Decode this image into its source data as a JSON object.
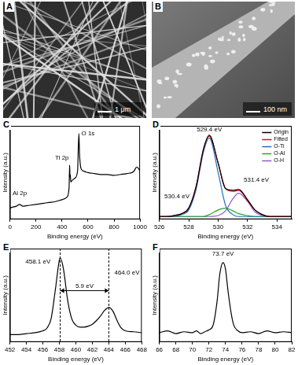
{
  "images": [
    {
      "panel_label": "A",
      "scale_bar": "1 μm"
    },
    {
      "panel_label": "B",
      "scale_bar": "100 nm"
    }
  ],
  "chart_data": [
    {
      "panel_label": "C",
      "type": "line",
      "x_label": "Binding energy (eV)",
      "y_label": "Intensity (a.u.)",
      "x": [
        0,
        20,
        50,
        74,
        100,
        150,
        200,
        250,
        300,
        350,
        400,
        440,
        455,
        459,
        462,
        464,
        468,
        480,
        500,
        520,
        530,
        535,
        545,
        560,
        600,
        650,
        700,
        750,
        800,
        850,
        900,
        950,
        975,
        1000
      ],
      "values": [
        12,
        13,
        14,
        16,
        14,
        15,
        16,
        17,
        18,
        19,
        21,
        24,
        35,
        58,
        45,
        48,
        40,
        42,
        44,
        52,
        92,
        70,
        55,
        52,
        50,
        49,
        48,
        48,
        47,
        48,
        49,
        51,
        56,
        52
      ],
      "color": "#000000",
      "xlim": [
        0,
        1000
      ],
      "xticks": [
        0,
        200,
        400,
        600,
        800,
        1000
      ],
      "ylim": [
        0,
        100
      ],
      "tick_labels": "x",
      "grid": false,
      "annotations": [
        {
          "text": "Al 2p",
          "x": 75,
          "y": 28
        },
        {
          "text": "Ti 2p",
          "x": 400,
          "y": 66
        },
        {
          "text": "O 1s",
          "x": 600,
          "y": 92
        }
      ]
    },
    {
      "panel_label": "D",
      "type": "line",
      "x_label": "Binding energy (eV)",
      "y_label": "Intensity (a.u.)",
      "x": [
        526,
        526.5,
        527,
        527.5,
        528,
        528.5,
        529,
        529.4,
        530,
        530.5,
        531,
        531.4,
        532,
        532.5,
        533,
        533.5,
        534,
        534.5,
        535
      ],
      "series": [
        {
          "name": "Origin",
          "color": "#000000",
          "values": [
            3,
            3,
            4,
            6,
            12,
            35,
            75,
            90,
            60,
            33,
            31,
            32,
            21,
            10,
            5,
            3,
            3,
            3,
            3
          ]
        },
        {
          "name": "Fitted",
          "color": "#ff0000",
          "values": [
            3,
            3,
            4,
            6,
            12,
            35,
            75,
            89,
            60,
            33,
            30,
            31,
            20,
            10,
            5,
            3,
            3,
            3,
            3
          ]
        },
        {
          "name": "O-Ti",
          "color": "#1f6fbf",
          "values": [
            3,
            3,
            3,
            5,
            10,
            32,
            72,
            87,
            50,
            15,
            5,
            3,
            3,
            3,
            3,
            3,
            3,
            3,
            3
          ]
        },
        {
          "name": "O-Al",
          "color": "#22aa22",
          "values": [
            3,
            3,
            3,
            3,
            3,
            3,
            3,
            5,
            10,
            12,
            9,
            6,
            4,
            3,
            3,
            3,
            3,
            3,
            3
          ]
        },
        {
          "name": "O-H",
          "color": "#8a5cc4",
          "values": [
            3,
            3,
            3,
            3,
            3,
            3,
            3,
            3,
            4,
            9,
            22,
            28,
            19,
            8,
            4,
            3,
            3,
            3,
            3
          ]
        }
      ],
      "xlim": [
        526,
        535
      ],
      "xticks": [
        526,
        528,
        530,
        532,
        534
      ],
      "ylim": [
        0,
        100
      ],
      "tick_labels": "x",
      "grid": false,
      "legend": "top right",
      "annotations": [
        {
          "text": "529.4 eV",
          "x": 529.4,
          "y": 96
        },
        {
          "text": "531.4 eV",
          "x": 532.6,
          "y": 42
        },
        {
          "text": "530.4 eV",
          "x": 527.2,
          "y": 24
        }
      ]
    },
    {
      "panel_label": "E",
      "type": "line",
      "x_label": "Binding energy (eV)",
      "y_label": "Intensity (a.u.)",
      "x": [
        452,
        453,
        454,
        455,
        456,
        456.5,
        457,
        457.5,
        458,
        458.1,
        458.5,
        459,
        459.5,
        460,
        460.5,
        461,
        461.5,
        462,
        462.5,
        463,
        463.5,
        464,
        464.5,
        465,
        465.5,
        466,
        467,
        468
      ],
      "values": [
        8,
        8,
        9,
        10,
        12,
        15,
        25,
        55,
        88,
        90,
        78,
        45,
        25,
        18,
        16,
        16,
        17,
        19,
        23,
        28,
        34,
        37,
        33,
        23,
        15,
        12,
        11,
        10
      ],
      "color": "#000000",
      "xlim": [
        452,
        468
      ],
      "xticks": [
        452,
        454,
        456,
        458,
        460,
        462,
        464,
        466,
        468
      ],
      "ylim": [
        0,
        100
      ],
      "tick_labels": "x",
      "grid": false,
      "vlines": [
        458.1,
        464.0
      ],
      "arrows": [
        {
          "from": 458.1,
          "to": 464.0,
          "y": 55,
          "text": "5.9 eV"
        }
      ],
      "annotations": [
        {
          "text": "458.1 eV",
          "x": 455.4,
          "y": 86
        },
        {
          "text": "464.0 eV",
          "x": 466.2,
          "y": 74
        }
      ]
    },
    {
      "panel_label": "F",
      "type": "line",
      "x_label": "Binding energy (eV)",
      "y_label": "Intensity (a.u.)",
      "x": [
        66,
        67,
        68,
        69,
        70,
        70.5,
        71,
        71.5,
        72,
        72.5,
        73,
        73.3,
        73.7,
        74,
        74.3,
        74.7,
        75,
        75.5,
        76,
        77,
        78,
        79,
        80,
        81,
        82
      ],
      "values": [
        10,
        12,
        9,
        11,
        10,
        12,
        9,
        11,
        13,
        18,
        45,
        72,
        85,
        78,
        55,
        30,
        18,
        12,
        10,
        11,
        9,
        12,
        10,
        11,
        10
      ],
      "color": "#000000",
      "xlim": [
        66,
        82
      ],
      "xticks": [
        66,
        68,
        70,
        72,
        74,
        76,
        78,
        80,
        82
      ],
      "ylim": [
        0,
        100
      ],
      "tick_labels": "x",
      "grid": false,
      "annotations": [
        {
          "text": "73.7 eV",
          "x": 73.7,
          "y": 94
        }
      ]
    }
  ]
}
